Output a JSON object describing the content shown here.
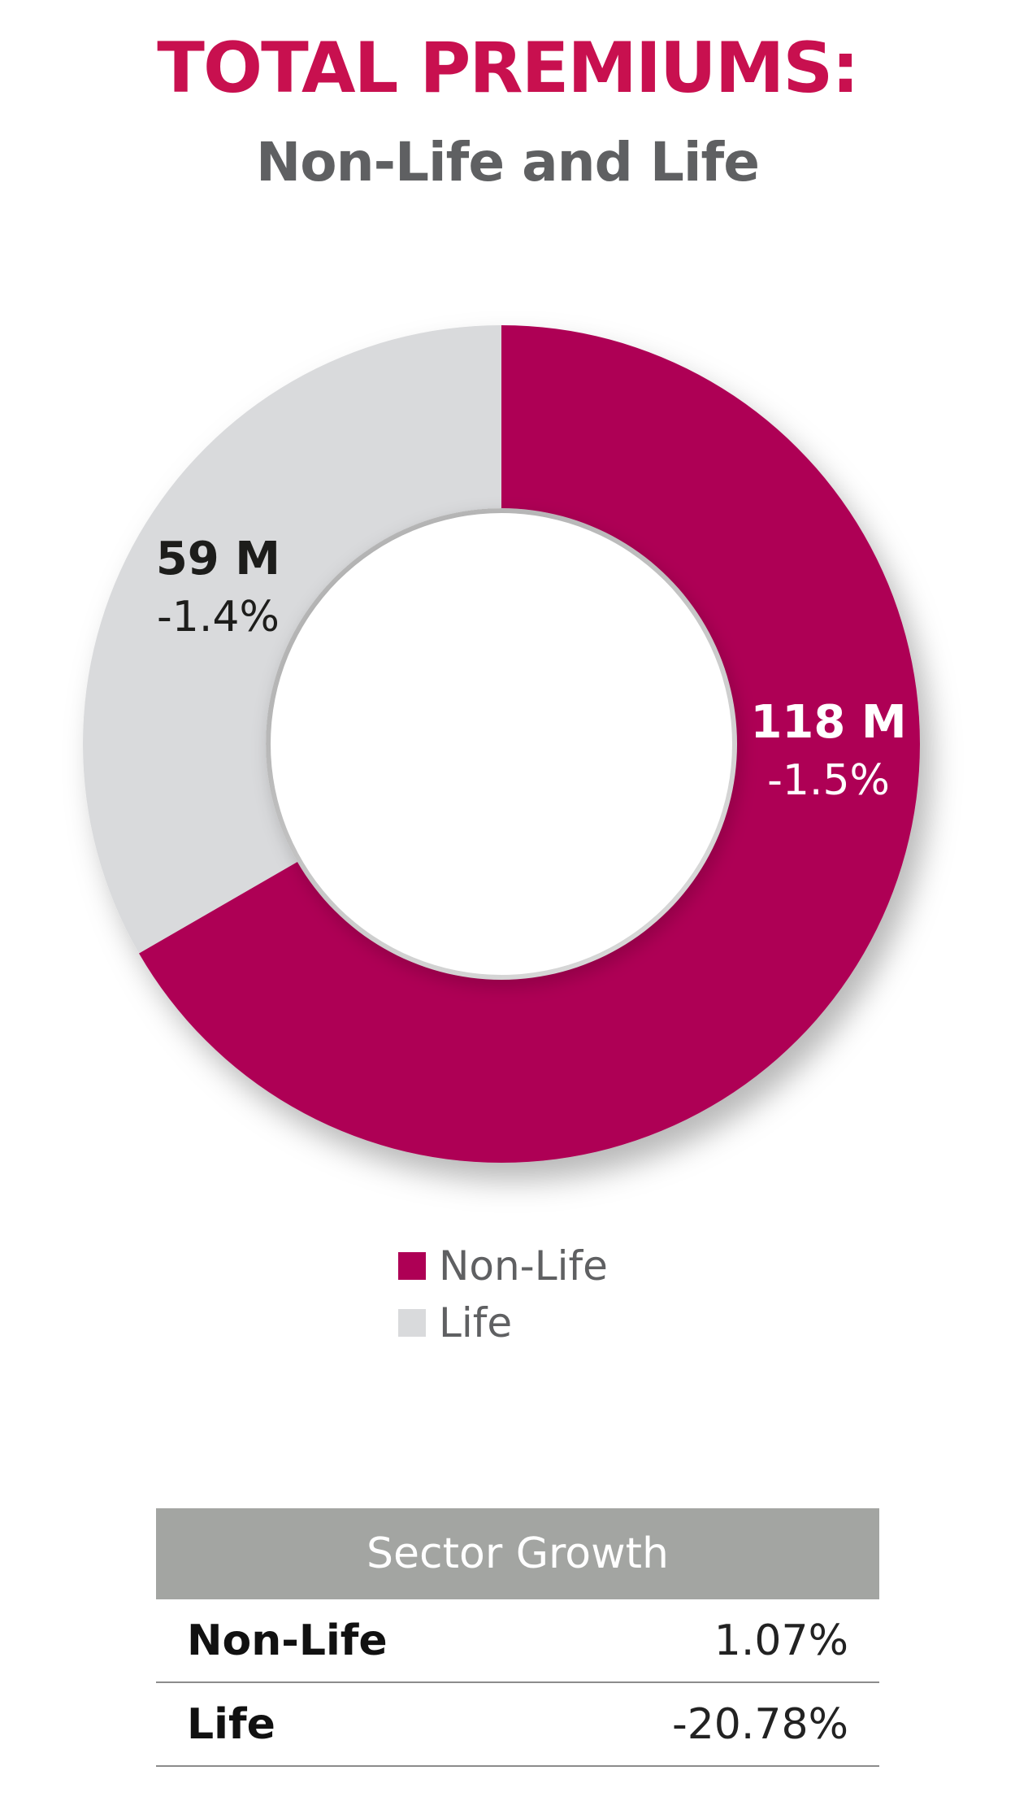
{
  "title": "TOTAL PREMIUMS:",
  "subtitle": "Non-Life and Life",
  "colors": {
    "title": "#c8104f",
    "subtitle": "#5f6062",
    "non_life": "#ae0055",
    "life": "#d9dadc"
  },
  "chart_data": {
    "type": "pie",
    "variant": "donut",
    "slices": [
      {
        "name": "Non-Life",
        "value": 118,
        "value_label": "118 M",
        "change_label": "-1.5%",
        "color": "#ae0055"
      },
      {
        "name": "Life",
        "value": 59,
        "value_label": "59 M",
        "change_label": "-1.4%",
        "color": "#d9dadc"
      }
    ],
    "legend_position": "bottom-center"
  },
  "legend": [
    {
      "label": "Non-Life",
      "color": "#ae0055"
    },
    {
      "label": "Life",
      "color": "#d9dadc"
    }
  ],
  "table": {
    "header": "Sector Growth",
    "rows": [
      {
        "label": "Non-Life",
        "value": "1.07%"
      },
      {
        "label": "Life",
        "value": "-20.78%"
      }
    ]
  }
}
